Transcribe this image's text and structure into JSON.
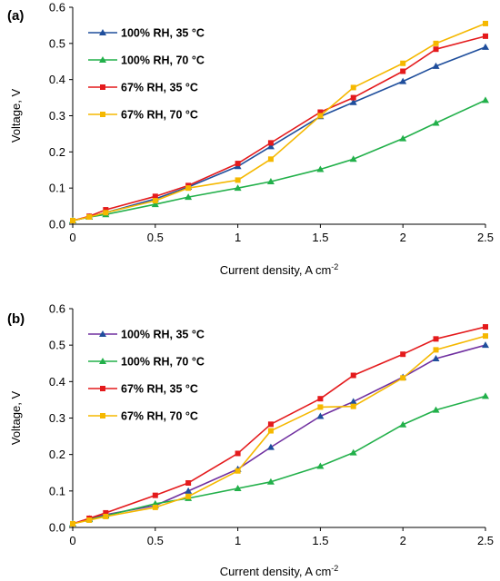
{
  "chart_data": [
    {
      "type": "line",
      "panel_label": "(a)",
      "xlabel": "Current density, A cm",
      "xlabel_sup": "-2",
      "ylabel": "Voltage, V",
      "xlim": [
        0,
        2.5
      ],
      "ylim": [
        0,
        0.6
      ],
      "xticks": [
        "0",
        "0.5",
        "1",
        "1.5",
        "2",
        "2.5"
      ],
      "yticks": [
        "0.0",
        "0.1",
        "0.2",
        "0.3",
        "0.4",
        "0.5",
        "0.6"
      ],
      "grid": false,
      "legend_position": "top-left",
      "series": [
        {
          "name": "100% RH,  35 °C",
          "color": "#1f4e9c",
          "marker": "triangle",
          "x": [
            0,
            0.1,
            0.2,
            0.5,
            0.7,
            1.0,
            1.2,
            1.5,
            1.7,
            2.0,
            2.2,
            2.5
          ],
          "y": [
            0.01,
            0.02,
            0.032,
            0.07,
            0.103,
            0.16,
            0.215,
            0.298,
            0.337,
            0.395,
            0.437,
            0.49
          ]
        },
        {
          "name": "100% RH,  70 °C",
          "color": "#22b04a",
          "marker": "triangle",
          "x": [
            0,
            0.1,
            0.2,
            0.5,
            0.7,
            1.0,
            1.2,
            1.5,
            1.7,
            2.0,
            2.2,
            2.5
          ],
          "y": [
            0.01,
            0.02,
            0.027,
            0.055,
            0.075,
            0.1,
            0.118,
            0.152,
            0.18,
            0.237,
            0.28,
            0.343
          ]
        },
        {
          "name": "67% RH,  35 °C",
          "color": "#e41a1c",
          "marker": "square",
          "x": [
            0,
            0.1,
            0.2,
            0.5,
            0.7,
            1.0,
            1.2,
            1.5,
            1.7,
            2.0,
            2.2,
            2.5
          ],
          "y": [
            0.01,
            0.022,
            0.04,
            0.077,
            0.107,
            0.168,
            0.225,
            0.31,
            0.35,
            0.423,
            0.484,
            0.52
          ]
        },
        {
          "name": "67% RH,  70 °C",
          "color": "#f5b800",
          "marker": "square",
          "x": [
            0,
            0.1,
            0.2,
            0.5,
            0.7,
            1.0,
            1.2,
            1.5,
            1.7,
            2.0,
            2.2,
            2.5
          ],
          "y": [
            0.01,
            0.02,
            0.032,
            0.065,
            0.1,
            0.122,
            0.18,
            0.3,
            0.378,
            0.445,
            0.5,
            0.555
          ]
        }
      ]
    },
    {
      "type": "line",
      "panel_label": "(b)",
      "xlabel": "Current density, A cm",
      "xlabel_sup": "-2",
      "ylabel": "Voltage, V",
      "xlim": [
        0,
        2.5
      ],
      "ylim": [
        0,
        0.6
      ],
      "xticks": [
        "0",
        "0.5",
        "1",
        "1.5",
        "2",
        "2.5"
      ],
      "yticks": [
        "0.0",
        "0.1",
        "0.2",
        "0.3",
        "0.4",
        "0.5",
        "0.6"
      ],
      "grid": false,
      "legend_position": "top-left",
      "series": [
        {
          "name": "100% RH,  35 °C",
          "color": "#7030a0",
          "marker_color": "#1f4e9c",
          "marker": "triangle",
          "x": [
            0,
            0.1,
            0.2,
            0.5,
            0.7,
            1.0,
            1.2,
            1.5,
            1.7,
            2.0,
            2.2,
            2.5
          ],
          "y": [
            0.01,
            0.024,
            0.035,
            0.06,
            0.1,
            0.16,
            0.22,
            0.305,
            0.345,
            0.412,
            0.463,
            0.5
          ]
        },
        {
          "name": "100% RH,  70 °C",
          "color": "#22b04a",
          "marker": "triangle",
          "x": [
            0,
            0.1,
            0.2,
            0.5,
            0.7,
            1.0,
            1.2,
            1.5,
            1.7,
            2.0,
            2.2,
            2.5
          ],
          "y": [
            0.01,
            0.022,
            0.032,
            0.065,
            0.08,
            0.107,
            0.125,
            0.168,
            0.205,
            0.282,
            0.322,
            0.36
          ]
        },
        {
          "name": "67% RH,  35 °C",
          "color": "#e41a1c",
          "marker": "square",
          "x": [
            0,
            0.1,
            0.2,
            0.5,
            0.7,
            1.0,
            1.2,
            1.5,
            1.7,
            2.0,
            2.2,
            2.5
          ],
          "y": [
            0.01,
            0.025,
            0.04,
            0.088,
            0.122,
            0.203,
            0.283,
            0.353,
            0.417,
            0.475,
            0.517,
            0.55
          ]
        },
        {
          "name": "67% RH,  70 °C",
          "color": "#f5b800",
          "marker": "square",
          "x": [
            0,
            0.1,
            0.2,
            0.5,
            0.7,
            1.0,
            1.2,
            1.5,
            1.7,
            2.0,
            2.2,
            2.5
          ],
          "y": [
            0.01,
            0.02,
            0.03,
            0.055,
            0.085,
            0.155,
            0.265,
            0.33,
            0.332,
            0.41,
            0.487,
            0.525
          ]
        }
      ]
    }
  ]
}
